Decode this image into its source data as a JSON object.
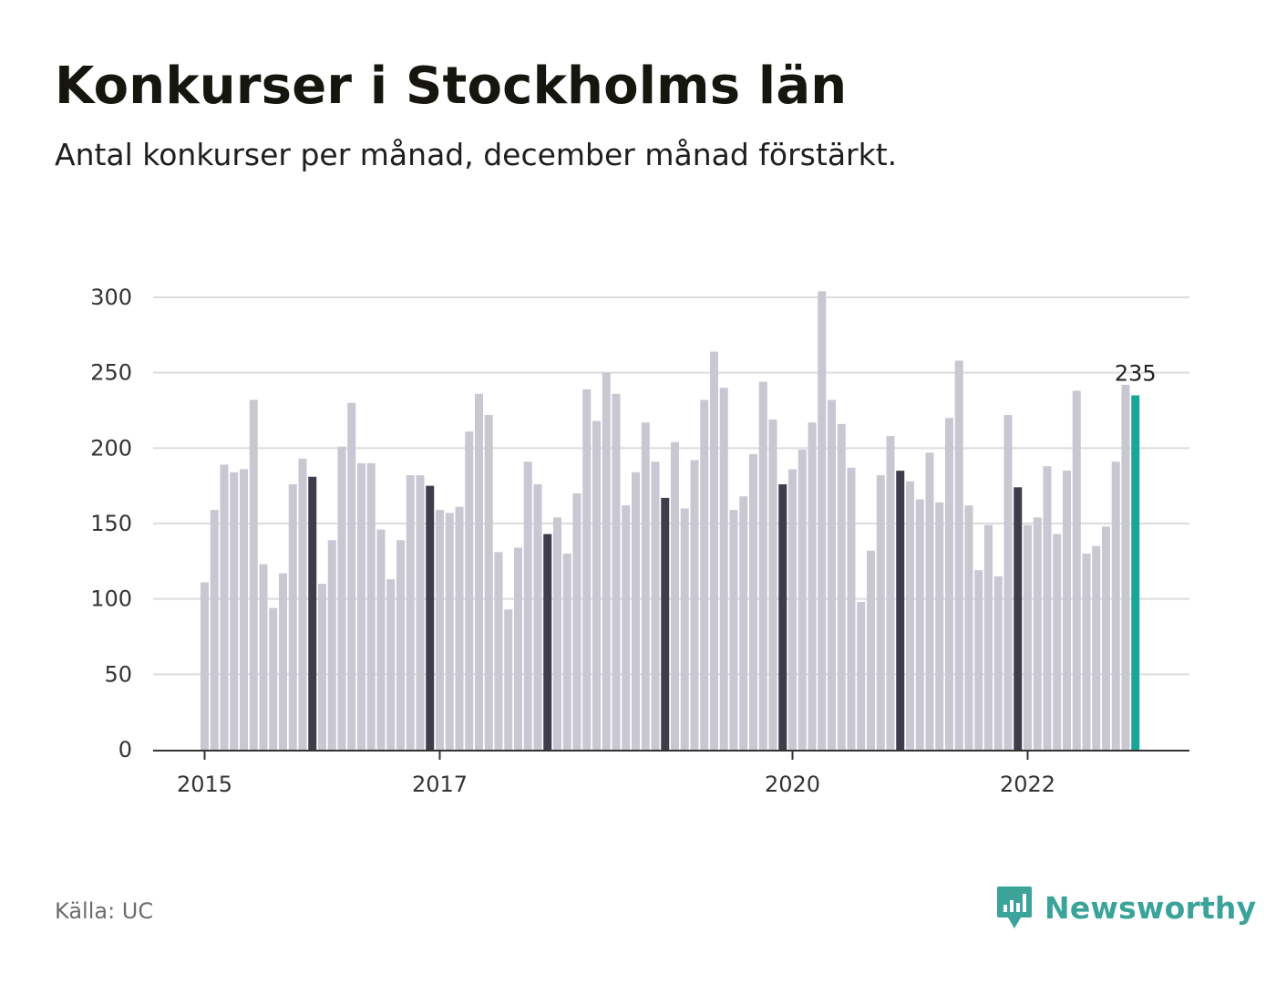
{
  "title": "Konkurser i Stockholms län",
  "subtitle": "Antal konkurser per månad, december månad förstärkt.",
  "source": "Källa: UC",
  "brand": "Newsworthy",
  "colors": {
    "bar": "#c8c7d2",
    "december": "#3e3d4c",
    "latest": "#1ba69a",
    "grid": "#dcdcdc",
    "axis": "#333333",
    "brand": "#3ba39a"
  },
  "chart_data": {
    "type": "bar",
    "title": "Konkurser i Stockholms län",
    "xlabel": "",
    "ylabel": "",
    "ylim": [
      0,
      300
    ],
    "yticks": [
      0,
      50,
      100,
      150,
      200,
      250,
      300
    ],
    "xticks": [
      "2015",
      "2017",
      "2020",
      "2022"
    ],
    "start": "2015-01",
    "highlight": "december",
    "last_label": "235",
    "values": [
      111,
      159,
      189,
      184,
      186,
      232,
      123,
      94,
      117,
      176,
      193,
      181,
      110,
      139,
      201,
      230,
      190,
      190,
      146,
      113,
      139,
      182,
      182,
      175,
      159,
      157,
      161,
      211,
      236,
      222,
      131,
      93,
      134,
      191,
      176,
      143,
      154,
      130,
      170,
      239,
      218,
      250,
      236,
      162,
      184,
      217,
      191,
      167,
      204,
      160,
      192,
      232,
      264,
      240,
      159,
      168,
      196,
      244,
      219,
      176,
      186,
      199,
      217,
      304,
      232,
      216,
      187,
      98,
      132,
      182,
      208,
      185,
      178,
      166,
      197,
      164,
      220,
      258,
      162,
      119,
      149,
      115,
      222,
      174,
      149,
      154,
      188,
      143,
      185,
      238,
      130,
      135,
      148,
      191,
      242,
      235
    ]
  }
}
